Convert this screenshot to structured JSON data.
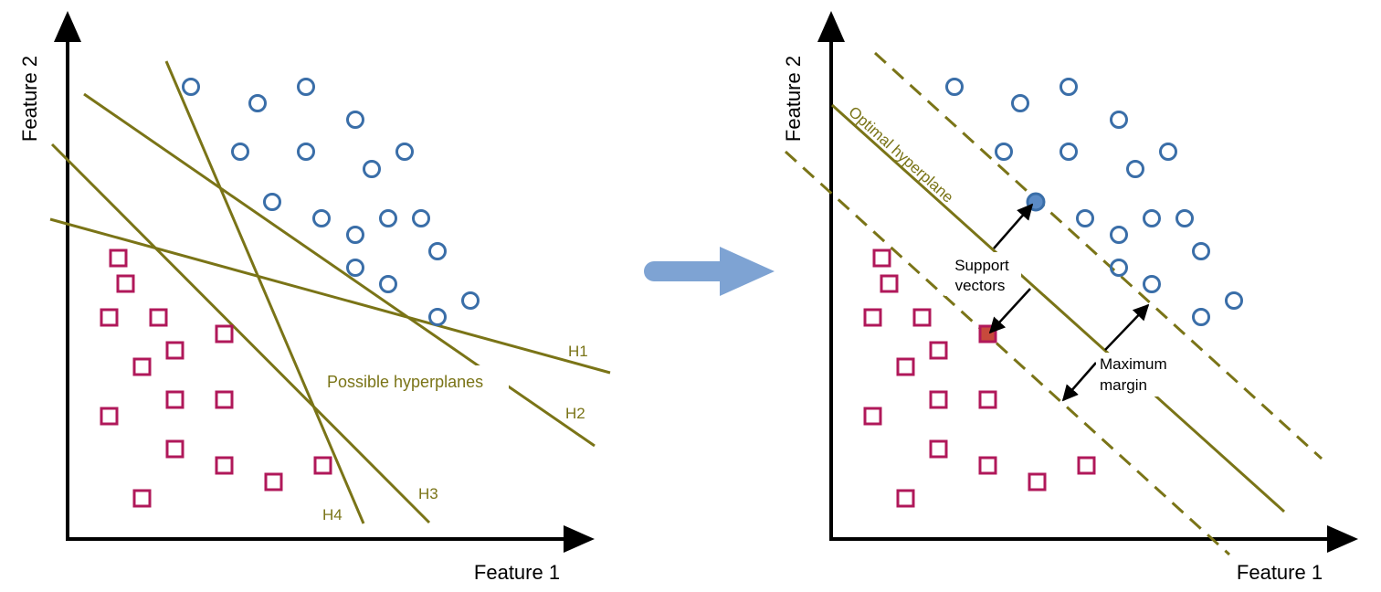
{
  "left_panel": {
    "x_axis_label": "Feature 1",
    "y_axis_label": "Feature 2",
    "caption": "Possible hyperplanes",
    "hyperplanes": [
      "H1",
      "H2",
      "H3",
      "H4"
    ]
  },
  "right_panel": {
    "x_axis_label": "Feature 1",
    "y_axis_label": "Feature 2",
    "optimal_label": "Optimal hyperplane",
    "support_label_line1": "Support",
    "support_label_line2": "vectors",
    "margin_label_line1": "Maximum",
    "margin_label_line2": "margin"
  },
  "colors": {
    "circle_class": "#3a6ea8",
    "square_class": "#b0185a",
    "hyperplane": "#7a7417",
    "arrow": "#7ea3d3",
    "axis": "#000000",
    "support_circle_fill": "#5b8bc6",
    "support_square_fill": "#c74a3c"
  },
  "icons": {
    "transition": "right-arrow-icon"
  }
}
